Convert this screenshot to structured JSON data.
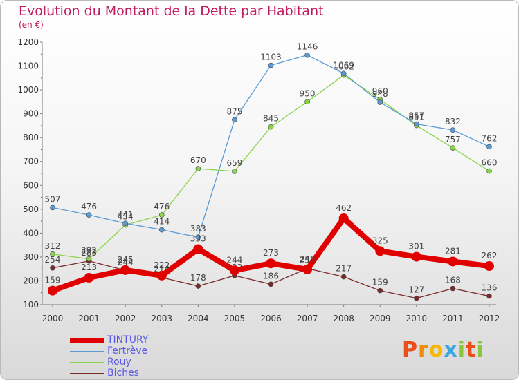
{
  "title": "Evolution du Montant de la Dette par Habitant",
  "subtitle": "(en €)",
  "logo": {
    "text": "Proxiti",
    "letters": [
      {
        "ch": "P",
        "color": "#e94e1b"
      },
      {
        "ch": "r",
        "color": "#f08c00"
      },
      {
        "ch": "o",
        "color": "#f5b800"
      },
      {
        "ch": "x",
        "color": "#3aa7e0"
      },
      {
        "ch": "i",
        "color": "#8cc63f"
      },
      {
        "ch": "t",
        "color": "#e94e1b"
      },
      {
        "ch": "i",
        "color": "#8cc63f"
      }
    ]
  },
  "chart_data": {
    "type": "line",
    "title": "Evolution du Montant de la Dette par Habitant",
    "subtitle": "(en €)",
    "categories": [
      "2000",
      "2001",
      "2002",
      "2003",
      "2004",
      "2005",
      "2006",
      "2007",
      "2008",
      "2009",
      "2010",
      "2011",
      "2012"
    ],
    "ylim": [
      100,
      1200
    ],
    "yticks": [
      100,
      200,
      300,
      400,
      500,
      600,
      700,
      800,
      900,
      1000,
      1100,
      1200
    ],
    "grid": false,
    "legend_position": "bottom-left",
    "series": [
      {
        "name": "Biches",
        "color": "#7b2a2a",
        "values": [
          254,
          283,
          244,
          214,
          178,
          222,
          186,
          252,
          217,
          159,
          127,
          168,
          136
        ]
      },
      {
        "name": "Rouy",
        "color": "#88d44a",
        "values": [
          312,
          292,
          434,
          476,
          670,
          659,
          845,
          950,
          1062,
          960,
          851,
          757,
          660
        ]
      },
      {
        "name": "Fertrève",
        "color": "#5b9bd5",
        "values": [
          507,
          476,
          441,
          414,
          383,
          875,
          1103,
          1146,
          1069,
          948,
          857,
          832,
          762
        ]
      },
      {
        "name": "TINTURY",
        "color": "#e00000",
        "values": [
          159,
          213,
          245,
          222,
          333,
          244,
          273,
          248,
          462,
          325,
          301,
          281,
          262
        ]
      }
    ]
  }
}
